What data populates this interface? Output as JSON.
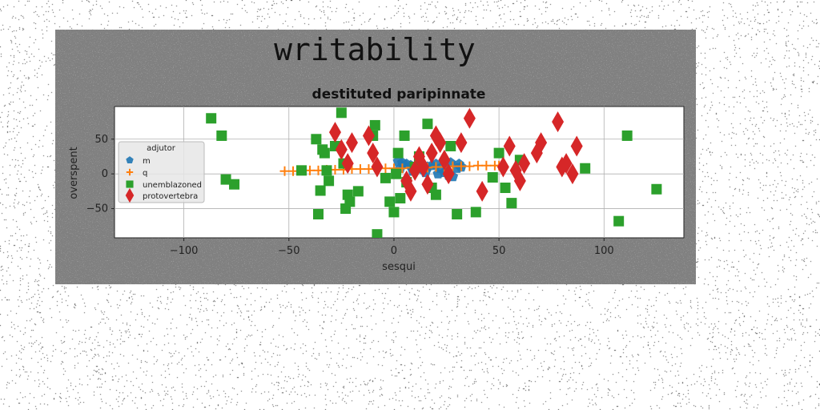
{
  "figure": {
    "suptitle": "writability"
  },
  "chart_data": {
    "type": "scatter",
    "title": "destituted paripinnate",
    "xlabel": "sesqui",
    "ylabel": "overspent",
    "xlim": [
      -133,
      138
    ],
    "ylim": [
      -92,
      97
    ],
    "xticks": [
      -100,
      -50,
      0,
      50,
      100
    ],
    "xtick_labels": [
      "−100",
      "−50",
      "0",
      "50",
      "100"
    ],
    "yticks": [
      -50,
      0,
      50
    ],
    "ytick_labels": [
      "−50",
      "0",
      "50"
    ],
    "grid": true,
    "legend": {
      "title": "adjutor",
      "placement": "center-left"
    },
    "series": [
      {
        "name": "m",
        "marker": "pentagon",
        "color": "#1f77b4",
        "x": [
          2,
          4,
          6,
          8,
          10,
          12,
          14,
          16,
          18,
          20,
          22,
          24,
          26,
          28,
          30,
          32,
          3,
          9,
          15,
          21,
          27,
          31
        ],
        "y": [
          18,
          16,
          14,
          12,
          10,
          8,
          6,
          10,
          12,
          14,
          8,
          2,
          -2,
          -4,
          8,
          10,
          8,
          4,
          2,
          0,
          16,
          14
        ]
      },
      {
        "name": "q",
        "marker": "plus",
        "color": "#ff7f0e",
        "x": [
          -52,
          -48,
          -44,
          -40,
          -36,
          -32,
          -28,
          -24,
          -20,
          -16,
          -12,
          -8,
          -4,
          0,
          4,
          8,
          12,
          16,
          20,
          24,
          28,
          32,
          36,
          40,
          44,
          48,
          50
        ],
        "y": [
          4,
          4,
          5,
          5,
          5,
          6,
          6,
          6,
          7,
          7,
          7,
          8,
          8,
          8,
          8,
          9,
          9,
          9,
          10,
          10,
          11,
          11,
          11,
          12,
          12,
          12,
          12
        ]
      },
      {
        "name": "unemblazoned",
        "marker": "square",
        "color": "#2ca02c",
        "x": [
          -87,
          -82,
          -80,
          -76,
          -44,
          -37,
          -36,
          -35,
          -34,
          -33,
          -32,
          -31,
          -28,
          -25,
          -24,
          -23,
          -22,
          -21,
          -17,
          -10,
          -9,
          -8,
          -4,
          -2,
          0,
          1,
          2,
          3,
          5,
          6,
          10,
          12,
          16,
          18,
          20,
          27,
          30,
          39,
          47,
          50,
          53,
          56,
          60,
          91,
          107,
          111,
          125
        ],
        "y": [
          80,
          55,
          -8,
          -15,
          5,
          50,
          -58,
          -24,
          35,
          30,
          5,
          -10,
          40,
          88,
          15,
          -50,
          -30,
          -40,
          -25,
          55,
          70,
          -87,
          -6,
          -40,
          -55,
          0,
          30,
          -35,
          55,
          -12,
          10,
          25,
          72,
          -20,
          -30,
          40,
          -58,
          -55,
          -5,
          30,
          -20,
          -42,
          20,
          8,
          -68,
          55,
          -22
        ]
      },
      {
        "name": "protovertebra",
        "marker": "diamond",
        "color": "#d62728",
        "x": [
          -28,
          -25,
          -22,
          -20,
          -12,
          -10,
          -8,
          6,
          8,
          10,
          12,
          14,
          16,
          18,
          20,
          22,
          24,
          26,
          32,
          36,
          42,
          52,
          55,
          58,
          60,
          62,
          68,
          70,
          78,
          80,
          82,
          85,
          87
        ],
        "y": [
          60,
          35,
          15,
          45,
          55,
          30,
          10,
          -10,
          -25,
          5,
          25,
          10,
          -15,
          30,
          55,
          45,
          20,
          0,
          45,
          80,
          -25,
          10,
          40,
          5,
          -10,
          15,
          30,
          45,
          75,
          10,
          15,
          0,
          40
        ]
      }
    ]
  }
}
